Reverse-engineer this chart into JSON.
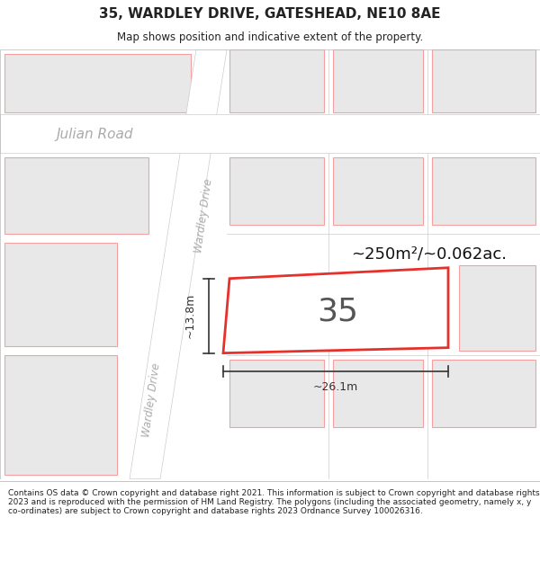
{
  "title_line1": "35, WARDLEY DRIVE, GATESHEAD, NE10 8AE",
  "title_line2": "Map shows position and indicative extent of the property.",
  "footer_text": "Contains OS data © Crown copyright and database right 2021. This information is subject to Crown copyright and database rights 2023 and is reproduced with the permission of HM Land Registry. The polygons (including the associated geometry, namely x, y co-ordinates) are subject to Crown copyright and database rights 2023 Ordnance Survey 100026316.",
  "map_bg": "#f2f2f2",
  "road_fill": "#ffffff",
  "road_border": "#cccccc",
  "plot_fill": "#e8e8e8",
  "plot_edge_other": "#f4a0a0",
  "plot_edge_main": "#e8302a",
  "road_label_color": "#aaaaaa",
  "dim_color": "#333333",
  "text_35_color": "#555555",
  "area_text": "~250m²/~0.062ac.",
  "width_text": "~26.1m",
  "height_text": "~13.8m",
  "fig_width": 6.0,
  "fig_height": 6.25,
  "title_fontsize": 11,
  "subtitle_fontsize": 8.5,
  "footer_fontsize": 6.5
}
